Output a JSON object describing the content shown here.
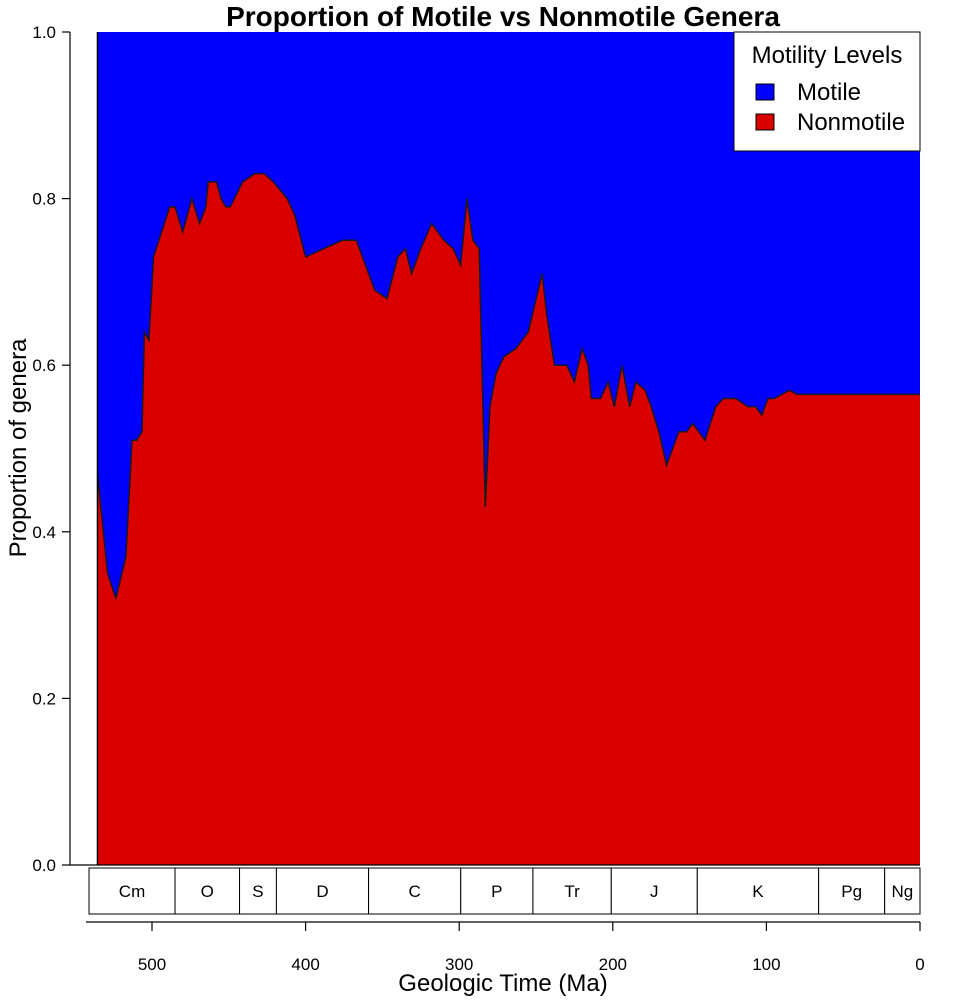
{
  "chart_data": {
    "type": "area",
    "title": "Proportion of Motile vs Nonmotile Genera",
    "xlabel": "Geologic Time (Ma)",
    "ylabel": "Proportion of genera",
    "xlim": [
      541,
      0
    ],
    "ylim": [
      0,
      1
    ],
    "x_ticks": [
      500,
      400,
      300,
      200,
      100,
      0
    ],
    "y_ticks": [
      "0.0",
      "0.2",
      "0.4",
      "0.6",
      "0.8",
      "1.0"
    ],
    "legend": {
      "title": "Motility Levels",
      "position": "top-right",
      "entries": [
        {
          "label": "Motile",
          "color": "#0000ff"
        },
        {
          "label": "Nonmotile",
          "color": "#d90000"
        }
      ]
    },
    "series": [
      {
        "name": "Nonmotile",
        "color": "#d90000"
      },
      {
        "name": "Motile",
        "color": "#0000ff"
      }
    ],
    "nonmotile_proportion": [
      [
        535.5,
        0.47
      ],
      [
        529,
        0.35
      ],
      [
        523.5,
        0.32
      ],
      [
        517,
        0.37
      ],
      [
        513,
        0.51
      ],
      [
        510,
        0.51
      ],
      [
        506.5,
        0.52
      ],
      [
        505,
        0.64
      ],
      [
        502,
        0.63
      ],
      [
        499,
        0.73
      ],
      [
        488.5,
        0.79
      ],
      [
        485,
        0.79
      ],
      [
        480,
        0.76
      ],
      [
        474,
        0.8
      ],
      [
        469,
        0.77
      ],
      [
        465,
        0.79
      ],
      [
        463.5,
        0.82
      ],
      [
        458,
        0.82
      ],
      [
        455,
        0.8
      ],
      [
        452,
        0.79
      ],
      [
        449,
        0.79
      ],
      [
        441,
        0.82
      ],
      [
        433,
        0.83
      ],
      [
        427,
        0.83
      ],
      [
        421,
        0.82
      ],
      [
        412,
        0.8
      ],
      [
        407,
        0.78
      ],
      [
        400,
        0.73
      ],
      [
        388,
        0.74
      ],
      [
        376,
        0.75
      ],
      [
        367,
        0.75
      ],
      [
        355,
        0.69
      ],
      [
        347,
        0.68
      ],
      [
        340,
        0.73
      ],
      [
        335,
        0.74
      ],
      [
        331,
        0.71
      ],
      [
        325,
        0.74
      ],
      [
        318,
        0.77
      ],
      [
        310,
        0.75
      ],
      [
        304,
        0.74
      ],
      [
        299,
        0.72
      ],
      [
        295,
        0.8
      ],
      [
        291,
        0.75
      ],
      [
        287,
        0.74
      ],
      [
        283,
        0.43
      ],
      [
        280,
        0.55
      ],
      [
        276,
        0.59
      ],
      [
        271,
        0.61
      ],
      [
        263,
        0.62
      ],
      [
        255,
        0.64
      ],
      [
        246,
        0.71
      ],
      [
        243,
        0.66
      ],
      [
        238,
        0.6
      ],
      [
        230,
        0.6
      ],
      [
        225,
        0.58
      ],
      [
        220,
        0.62
      ],
      [
        216,
        0.6
      ],
      [
        214,
        0.56
      ],
      [
        208,
        0.56
      ],
      [
        203,
        0.58
      ],
      [
        199,
        0.55
      ],
      [
        194,
        0.6
      ],
      [
        189,
        0.55
      ],
      [
        185,
        0.58
      ],
      [
        179,
        0.57
      ],
      [
        175,
        0.55
      ],
      [
        170,
        0.52
      ],
      [
        165,
        0.48
      ],
      [
        157,
        0.52
      ],
      [
        152,
        0.52
      ],
      [
        148,
        0.53
      ],
      [
        140,
        0.51
      ],
      [
        133,
        0.55
      ],
      [
        128,
        0.56
      ],
      [
        124,
        0.56
      ],
      [
        120,
        0.56
      ],
      [
        112,
        0.55
      ],
      [
        107,
        0.55
      ],
      [
        103,
        0.54
      ],
      [
        99,
        0.56
      ],
      [
        95,
        0.56
      ],
      [
        90,
        0.565
      ],
      [
        85,
        0.57
      ],
      [
        80,
        0.565
      ],
      [
        75,
        0.565
      ],
      [
        72,
        0.565
      ],
      [
        69,
        0.565
      ],
      [
        66,
        0.565
      ],
      [
        62,
        0.565
      ],
      [
        58,
        0.565
      ],
      [
        55,
        0.565
      ],
      [
        52,
        0.565
      ],
      [
        48,
        0.565
      ],
      [
        44,
        0.565
      ],
      [
        40,
        0.565
      ],
      [
        36,
        0.565
      ],
      [
        32,
        0.565
      ],
      [
        28,
        0.565
      ],
      [
        24,
        0.565
      ],
      [
        20,
        0.565
      ],
      [
        16,
        0.565
      ],
      [
        12,
        0.565
      ],
      [
        8,
        0.565
      ],
      [
        4,
        0.565
      ],
      [
        0,
        0.565
      ]
    ],
    "periods": [
      {
        "label": "Cm",
        "start": 541,
        "end": 485
      },
      {
        "label": "O",
        "start": 485,
        "end": 443
      },
      {
        "label": "S",
        "start": 443,
        "end": 419
      },
      {
        "label": "D",
        "start": 419,
        "end": 359
      },
      {
        "label": "C",
        "start": 359,
        "end": 299
      },
      {
        "label": "P",
        "start": 299,
        "end": 252
      },
      {
        "label": "Tr",
        "start": 252,
        "end": 201
      },
      {
        "label": "J",
        "start": 201,
        "end": 145
      },
      {
        "label": "K",
        "start": 145,
        "end": 66
      },
      {
        "label": "Pg",
        "start": 66,
        "end": 23
      },
      {
        "label": "Ng",
        "start": 23,
        "end": 0
      }
    ]
  }
}
